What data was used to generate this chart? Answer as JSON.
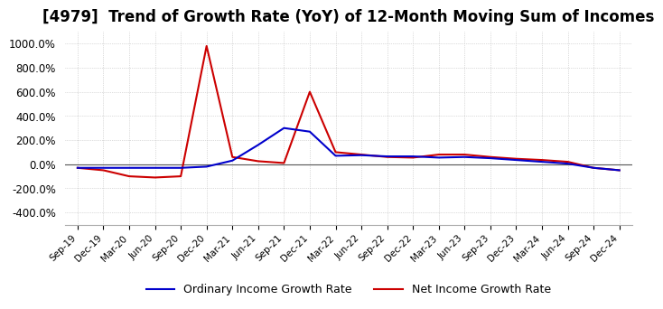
{
  "title": "[4979]  Trend of Growth Rate (YoY) of 12-Month Moving Sum of Incomes",
  "title_fontsize": 12,
  "ylim": [
    -500,
    1100
  ],
  "yticks": [
    -400,
    -200,
    0,
    200,
    400,
    600,
    800,
    1000
  ],
  "ytick_labels": [
    "-400.0%",
    "-200.0%",
    "0.0%",
    "200.0%",
    "400.0%",
    "600.0%",
    "800.0%",
    "1000.0%"
  ],
  "background_color": "#ffffff",
  "grid_color": "#bbbbbb",
  "ordinary_color": "#0000cc",
  "net_color": "#cc0000",
  "ordinary_label": "Ordinary Income Growth Rate",
  "net_label": "Net Income Growth Rate",
  "dates": [
    "Sep-19",
    "Dec-19",
    "Mar-20",
    "Jun-20",
    "Sep-20",
    "Dec-20",
    "Mar-21",
    "Jun-21",
    "Sep-21",
    "Dec-21",
    "Mar-22",
    "Jun-22",
    "Sep-22",
    "Dec-22",
    "Mar-23",
    "Jun-23",
    "Sep-23",
    "Dec-23",
    "Mar-24",
    "Jun-24",
    "Sep-24",
    "Dec-24"
  ],
  "ordinary_values": [
    -30,
    -30,
    -30,
    -30,
    -30,
    -20,
    30,
    160,
    300,
    270,
    70,
    75,
    65,
    65,
    55,
    60,
    50,
    35,
    20,
    5,
    -30,
    -50
  ],
  "net_values": [
    -30,
    -50,
    -100,
    -110,
    -100,
    980,
    60,
    25,
    10,
    600,
    100,
    80,
    60,
    55,
    80,
    80,
    60,
    45,
    35,
    20,
    -30,
    -50
  ]
}
